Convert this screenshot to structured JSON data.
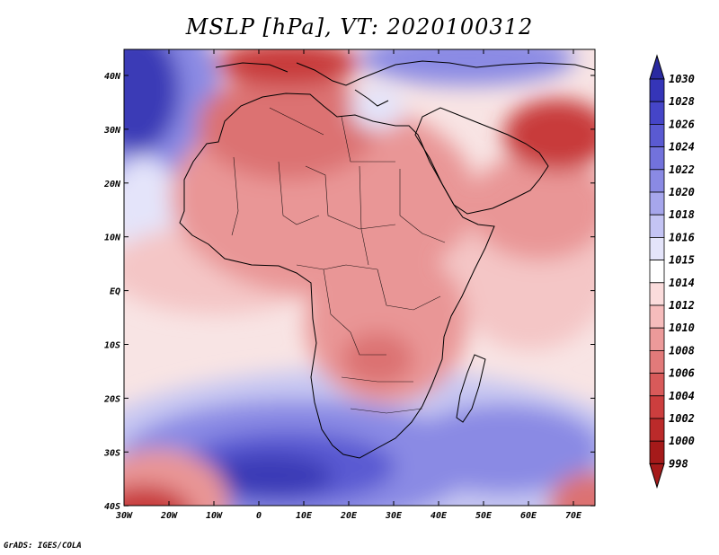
{
  "title": "MSLP [hPa], VT: 2020100312",
  "credit": "GrADS: IGES/COLA",
  "axes": {
    "lon_labels": [
      "30W",
      "20W",
      "10W",
      "0",
      "10E",
      "20E",
      "30E",
      "40E",
      "50E",
      "60E",
      "70E"
    ],
    "lat_labels": [
      "40N",
      "30N",
      "20N",
      "10N",
      "EQ",
      "10S",
      "20S",
      "30S",
      "40S"
    ]
  },
  "colorbar": {
    "levels": [
      "1030",
      "1028",
      "1026",
      "1024",
      "1022",
      "1020",
      "1018",
      "1016",
      "1015",
      "1014",
      "1012",
      "1010",
      "1008",
      "1006",
      "1004",
      "1002",
      "1000",
      "998"
    ],
    "colors": [
      "#2a2aa0",
      "#3535b8",
      "#4545c8",
      "#5a5ad2",
      "#7272dc",
      "#8a8ae4",
      "#a6a6ec",
      "#c4c4f4",
      "#e4e4fa",
      "#ffffff",
      "#fbdcdc",
      "#f6bcbc",
      "#ec9a9a",
      "#e27a7a",
      "#d85a5a",
      "#cc3e3e",
      "#bb2a2a",
      "#a51a1a"
    ]
  },
  "field_colors": {
    "very_high": "#3a3ab6",
    "high": "#6464d4",
    "mid_high": "#9a9ae8",
    "light_high": "#c8c8f2",
    "neutral": "#f8eaea",
    "light_low": "#f4c6c6",
    "low": "#e99696",
    "mid_low": "#dc7272",
    "very_low": "#c83a3a"
  }
}
